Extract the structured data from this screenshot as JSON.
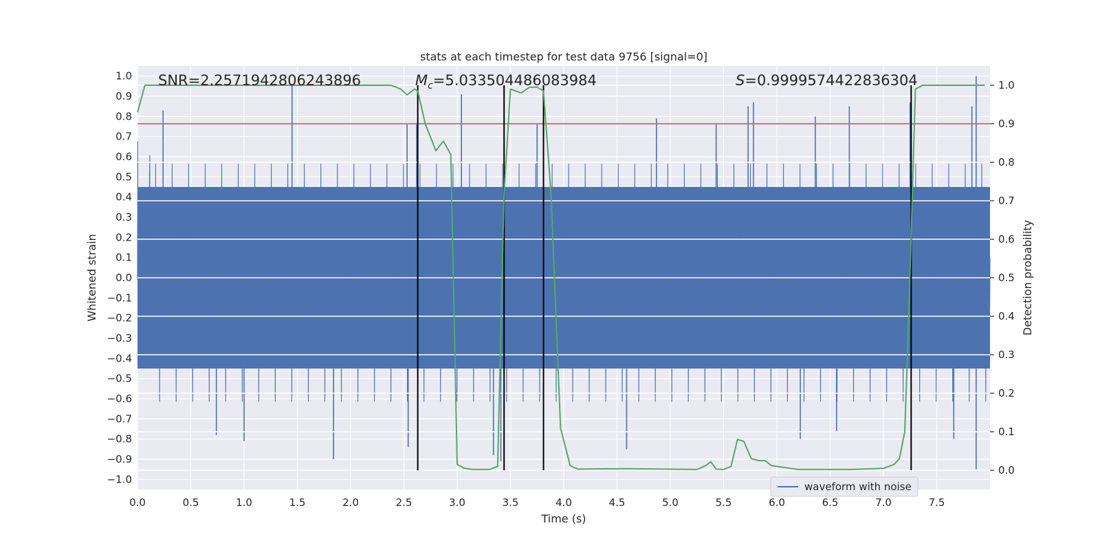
{
  "chart_data": {
    "type": "line",
    "title": "stats at each timestep for test data 9756 [signal=0]",
    "xlabel": "Time (s)",
    "ylabel": "Whitened strain",
    "y2label": "Detection probability",
    "xlim": [
      0.0,
      8.0
    ],
    "ylim": [
      -1.05,
      1.05
    ],
    "y2lim": [
      -0.05,
      1.05
    ],
    "x_ticks": [
      "0.0",
      "0.5",
      "1.0",
      "1.5",
      "2.0",
      "2.5",
      "3.0",
      "3.5",
      "4.0",
      "4.5",
      "5.0",
      "5.5",
      "6.0",
      "6.5",
      "7.0",
      "7.5"
    ],
    "y_ticks": [
      "1.0",
      "0.9",
      "0.8",
      "0.7",
      "0.6",
      "0.5",
      "0.4",
      "0.3",
      "0.2",
      "0.1",
      "0.0",
      "−0.1",
      "−0.2",
      "−0.3",
      "−0.4",
      "−0.5",
      "−0.6",
      "−0.7",
      "−0.8",
      "−0.9",
      "−1.0"
    ],
    "y2_ticks": [
      "1.0",
      "0.9",
      "0.8",
      "0.7",
      "0.6",
      "0.5",
      "0.4",
      "0.3",
      "0.2",
      "0.1",
      "0.0"
    ],
    "annotations": {
      "snr": "SNR=2.2571942806243896",
      "mc_symbol": "M",
      "mc_sub": "c",
      "mc_value": "=5.033504486083984",
      "s_symbol": "S",
      "s_value": "=0.9999574422836304"
    },
    "threshold_y2": 0.9,
    "vertical_lines_x": [
      2.63,
      3.44,
      3.81,
      7.26
    ],
    "series": [
      {
        "name": "waveform with noise",
        "color": "#4c72b0",
        "kind": "noise",
        "x_range": [
          0.0,
          8.0
        ],
        "core_amplitude": 0.45,
        "peaks_positive": [
          [
            0.24,
            0.83
          ],
          [
            1.45,
            0.96
          ],
          [
            2.53,
            0.76
          ],
          [
            2.62,
            0.76
          ],
          [
            3.04,
            0.91
          ],
          [
            3.75,
            0.76
          ],
          [
            4.87,
            0.79
          ],
          [
            5.43,
            0.76
          ],
          [
            5.73,
            0.85
          ],
          [
            5.78,
            0.87
          ],
          [
            6.36,
            0.8
          ],
          [
            6.68,
            0.85
          ],
          [
            7.25,
            0.87
          ],
          [
            7.83,
            0.85
          ],
          [
            7.87,
            1.0
          ]
        ],
        "peaks_negative": [
          [
            0.74,
            -0.78
          ],
          [
            1.0,
            -0.81
          ],
          [
            1.84,
            -0.9
          ],
          [
            2.54,
            -0.84
          ],
          [
            3.34,
            -0.88
          ],
          [
            3.41,
            -0.91
          ],
          [
            4.59,
            -0.85
          ],
          [
            6.22,
            -0.8
          ],
          [
            6.56,
            -0.76
          ],
          [
            7.66,
            -0.8
          ],
          [
            7.87,
            -0.95
          ]
        ]
      },
      {
        "name": "detection",
        "color": "#55a868",
        "axis": "y2",
        "x": [
          0.0,
          0.07,
          0.3,
          2.2,
          2.38,
          2.47,
          2.53,
          2.6,
          2.63,
          2.7,
          2.8,
          2.87,
          2.94,
          3.0,
          3.07,
          3.15,
          3.3,
          3.38,
          3.44,
          3.5,
          3.6,
          3.68,
          3.75,
          3.81,
          3.88,
          3.97,
          4.06,
          4.13,
          4.6,
          5.25,
          5.33,
          5.38,
          5.43,
          5.5,
          5.57,
          5.63,
          5.69,
          5.76,
          5.83,
          5.89,
          5.95,
          6.2,
          6.7,
          7.0,
          7.1,
          7.15,
          7.2,
          7.24,
          7.3,
          7.37,
          7.45,
          7.95
        ],
        "y": [
          0.93,
          1.0,
          1.0,
          1.0,
          1.0,
          0.99,
          0.975,
          0.99,
          0.985,
          0.9,
          0.83,
          0.855,
          0.82,
          0.015,
          0.005,
          0.002,
          0.002,
          0.01,
          0.72,
          0.99,
          0.98,
          0.995,
          0.995,
          0.985,
          0.72,
          0.11,
          0.012,
          0.003,
          0.004,
          0.002,
          0.012,
          0.022,
          0.003,
          0.002,
          0.01,
          0.08,
          0.075,
          0.03,
          0.025,
          0.025,
          0.012,
          0.002,
          0.002,
          0.005,
          0.015,
          0.03,
          0.1,
          0.42,
          0.99,
          1.0,
          1.0,
          1.0
        ]
      }
    ],
    "legend": {
      "placement": "bottom-center",
      "entries": [
        "waveform with noise"
      ]
    },
    "grid": true
  }
}
